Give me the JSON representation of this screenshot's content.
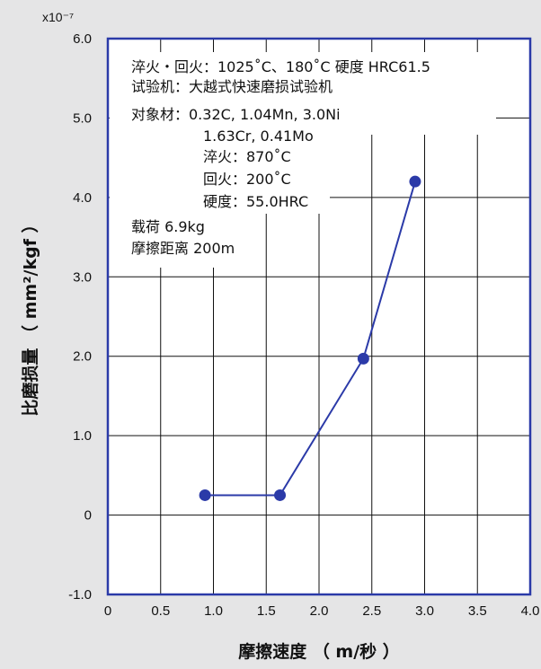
{
  "chart_data": {
    "type": "line",
    "x": [
      0.92,
      1.63,
      2.42,
      2.91
    ],
    "values": [
      0.25,
      0.25,
      1.97,
      4.2
    ],
    "xlabel": "摩擦速度 （ m/秒 ）",
    "ylabel": "比磨损量 （ mm²/kgf ）",
    "y_multiplier": "x10⁻⁷",
    "xlim": [
      0,
      4.0
    ],
    "ylim": [
      -1.0,
      6.0
    ],
    "xticks": [
      "0",
      "0.5",
      "1.0",
      "1.5",
      "2.0",
      "2.5",
      "3.0",
      "3.5",
      "4.0"
    ],
    "yticks": [
      "-1.0",
      "0",
      "1.0",
      "2.0",
      "3.0",
      "4.0",
      "5.0",
      "6.0"
    ],
    "grid": true,
    "annotations": [
      "淬火・回火：1025˚C、180˚C 硬度 HRC61.5",
      "试验机：大越式快速磨损试验机",
      "对象材：0.32C, 1.04Mn, 3.0Ni",
      "1.63Cr, 0.41Mo",
      "淬火：870˚C",
      "回火：200˚C",
      "硬度：55.0HRC",
      "载荷 6.9kg",
      "摩擦距离 200m"
    ],
    "colors": {
      "line": "#2b3aa8",
      "frame": "#2b3aa8",
      "grid": "#111111",
      "background": "#e5e5e6",
      "annotation_bg": "#ffffff"
    }
  }
}
